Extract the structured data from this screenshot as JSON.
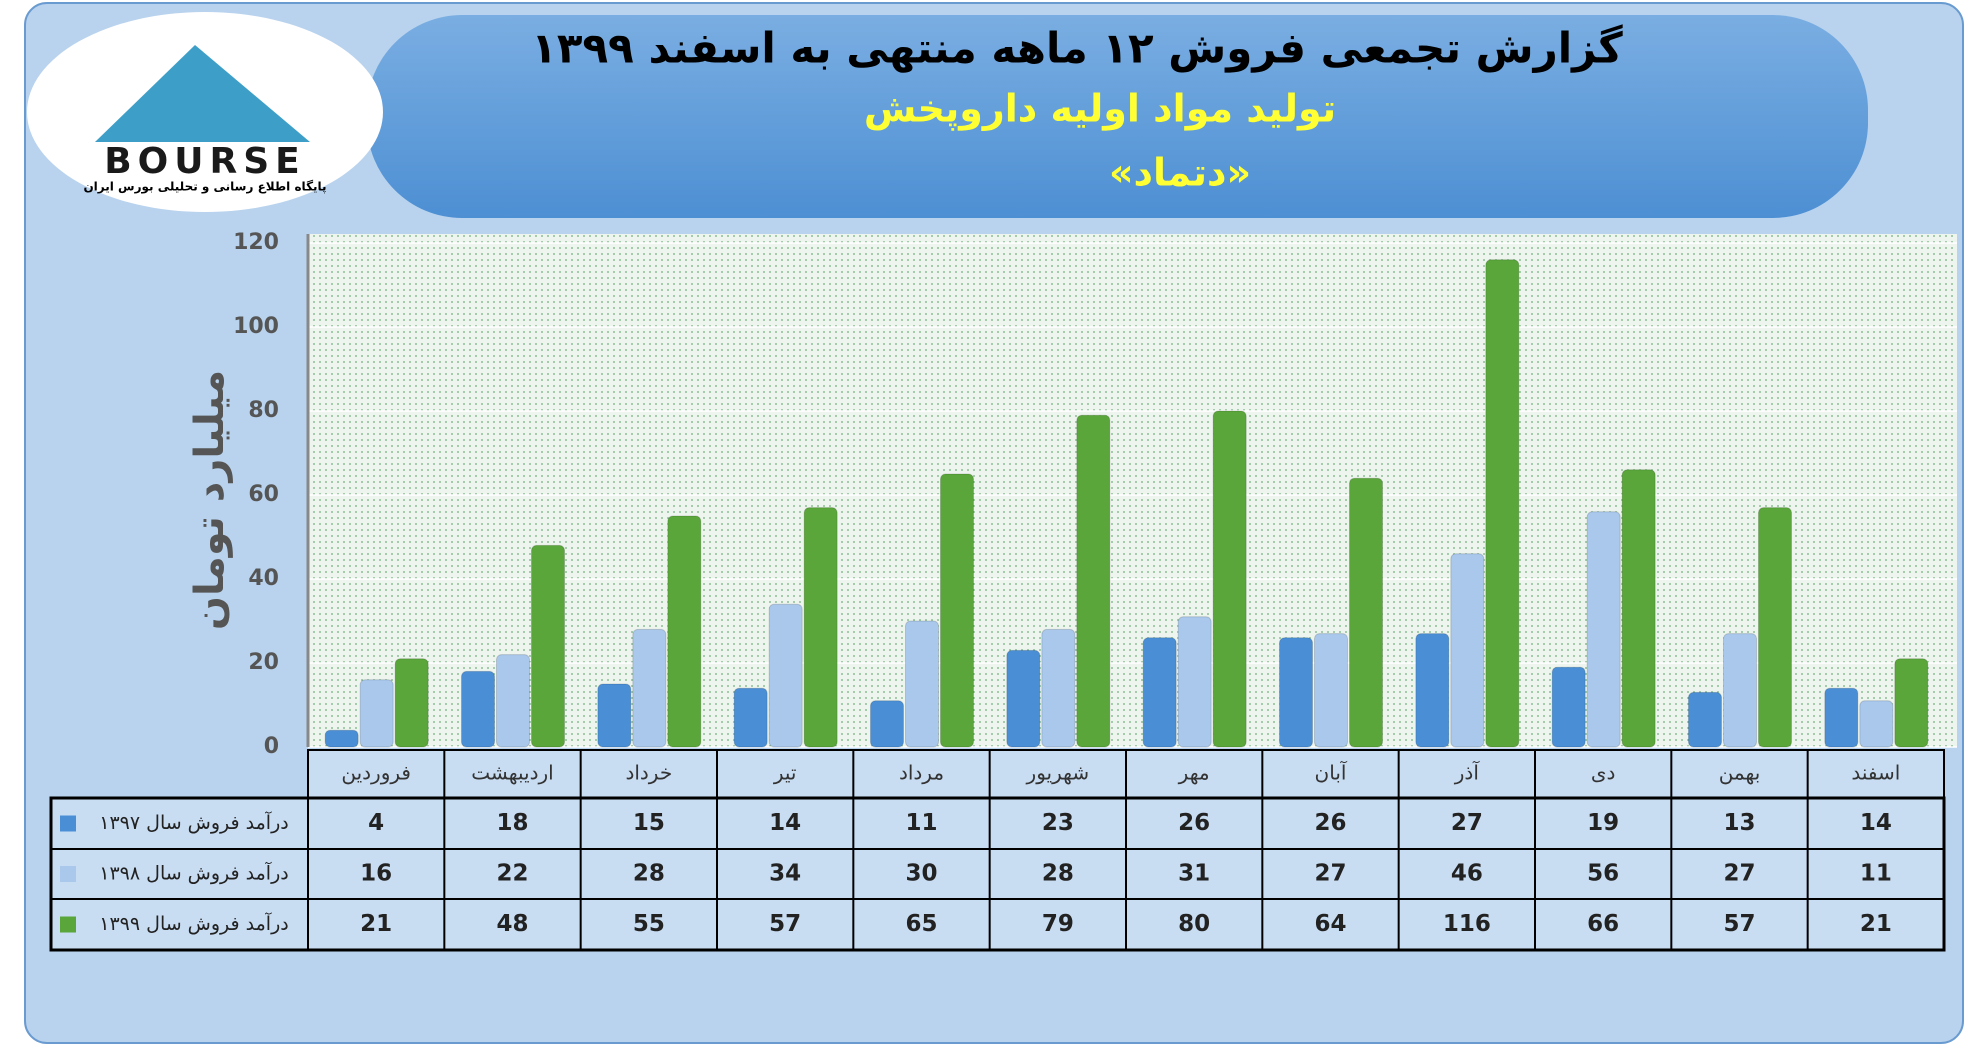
{
  "logo": {
    "name": "BOURSE",
    "tagline": "پایگاه اطلاع رسانی و تحلیلی بورس ایران"
  },
  "chart_data": {
    "type": "bar",
    "title": "گزارش تجمعی فروش ۱۲ ماهه منتهی به اسفند ۱۳۹۹",
    "subtitle": "تولید مواد اولیه داروپخش",
    "symbol": "«دتماد»",
    "y_label": "میلیارد تومان",
    "categories": [
      "فروردین",
      "اردیبهشت",
      "خرداد",
      "تیر",
      "مرداد",
      "شهریور",
      "مهر",
      "آبان",
      "آذر",
      "دی",
      "بهمن",
      "اسفند"
    ],
    "series": [
      {
        "name": "درآمد فروش سال ۱۳۹۷",
        "color": "#4a8fd6",
        "values": [
          4,
          18,
          15,
          14,
          11,
          23,
          26,
          26,
          27,
          19,
          13,
          14
        ]
      },
      {
        "name": "درآمد فروش سال ۱۳۹۸",
        "color": "#a9c8ec",
        "values": [
          16,
          22,
          28,
          34,
          30,
          28,
          31,
          27,
          46,
          56,
          27,
          11
        ]
      },
      {
        "name": "درآمد فروش سال ۱۳۹۹",
        "color": "#5aa63a",
        "values": [
          21,
          48,
          55,
          57,
          65,
          79,
          80,
          64,
          116,
          66,
          57,
          21
        ]
      }
    ],
    "ylim": [
      0,
      120
    ],
    "yticks": [
      0,
      20,
      40,
      60,
      80,
      100,
      120
    ],
    "grid": true
  }
}
